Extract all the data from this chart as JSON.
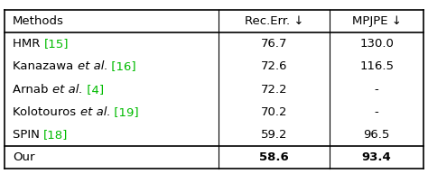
{
  "col_headers": [
    "Methods",
    "Rec.Err. ↓",
    "MPJPE ↓"
  ],
  "rows": [
    [
      "HMR ",
      "[15]",
      "",
      "76.7",
      "130.0"
    ],
    [
      "Kanazawa ",
      "et al.",
      " [16]",
      "72.6",
      "116.5"
    ],
    [
      "Arnab ",
      "et al.",
      " [4]",
      "72.2",
      "-"
    ],
    [
      "Kolotouros ",
      "et al.",
      " [19]",
      "70.2",
      "-"
    ],
    [
      "SPIN ",
      "[18]",
      "",
      "59.2",
      "96.5"
    ]
  ],
  "last_row": [
    "Our",
    "58.6",
    "93.4"
  ],
  "text_color": "#000000",
  "ref_color": "#00bb00"
}
